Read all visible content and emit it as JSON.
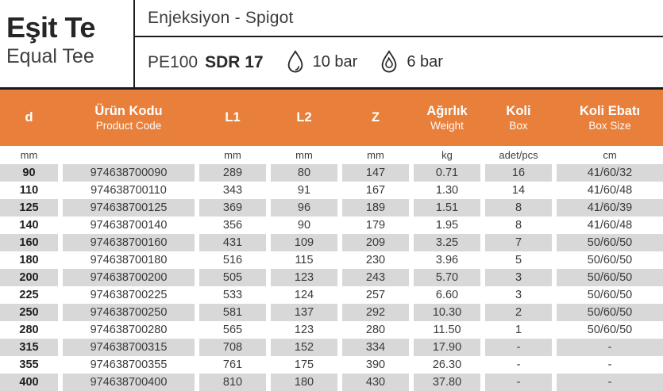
{
  "header": {
    "title_tr": "Eşit Te",
    "title_en": "Equal Tee",
    "type_label": "Enjeksiyon - Spigot",
    "material": "PE100",
    "sdr": "SDR 17",
    "pressure_water": "10 bar",
    "pressure_gas": "6 bar",
    "icons": {
      "water": "water-droplet-icon",
      "gas": "gas-flame-icon"
    }
  },
  "table": {
    "columns": [
      {
        "main": "d",
        "sub": "",
        "unit": "mm"
      },
      {
        "main": "Ürün Kodu",
        "sub": "Product Code",
        "unit": ""
      },
      {
        "main": "L1",
        "sub": "",
        "unit": "mm"
      },
      {
        "main": "L2",
        "sub": "",
        "unit": "mm"
      },
      {
        "main": "Z",
        "sub": "",
        "unit": "mm"
      },
      {
        "main": "Ağırlık",
        "sub": "Weight",
        "unit": "kg"
      },
      {
        "main": "Koli",
        "sub": "Box",
        "unit": "adet/pcs"
      },
      {
        "main": "Koli Ebatı",
        "sub": "Box Size",
        "unit": "cm"
      }
    ],
    "rows": [
      [
        "90",
        "974638700090",
        "289",
        "80",
        "147",
        "0.71",
        "16",
        "41/60/32"
      ],
      [
        "110",
        "974638700110",
        "343",
        "91",
        "167",
        "1.30",
        "14",
        "41/60/48"
      ],
      [
        "125",
        "974638700125",
        "369",
        "96",
        "189",
        "1.51",
        "8",
        "41/60/39"
      ],
      [
        "140",
        "974638700140",
        "356",
        "90",
        "179",
        "1.95",
        "8",
        "41/60/48"
      ],
      [
        "160",
        "974638700160",
        "431",
        "109",
        "209",
        "3.25",
        "7",
        "50/60/50"
      ],
      [
        "180",
        "974638700180",
        "516",
        "115",
        "230",
        "3.96",
        "5",
        "50/60/50"
      ],
      [
        "200",
        "974638700200",
        "505",
        "123",
        "243",
        "5.70",
        "3",
        "50/60/50"
      ],
      [
        "225",
        "974638700225",
        "533",
        "124",
        "257",
        "6.60",
        "3",
        "50/60/50"
      ],
      [
        "250",
        "974638700250",
        "581",
        "137",
        "292",
        "10.30",
        "2",
        "50/60/50"
      ],
      [
        "280",
        "974638700280",
        "565",
        "123",
        "280",
        "11.50",
        "1",
        "50/60/50"
      ],
      [
        "315",
        "974638700315",
        "708",
        "152",
        "334",
        "17.90",
        "-",
        "-"
      ],
      [
        "355",
        "974638700355",
        "761",
        "175",
        "390",
        "26.30",
        "-",
        "-"
      ],
      [
        "400",
        "974638700400",
        "810",
        "180",
        "430",
        "37.80",
        "-",
        "-"
      ]
    ]
  },
  "colors": {
    "accent_orange": "#E8803C",
    "row_gray": "#D8D8D8",
    "text_dark": "#3A3A3A",
    "line_black": "#1A1A1A"
  }
}
